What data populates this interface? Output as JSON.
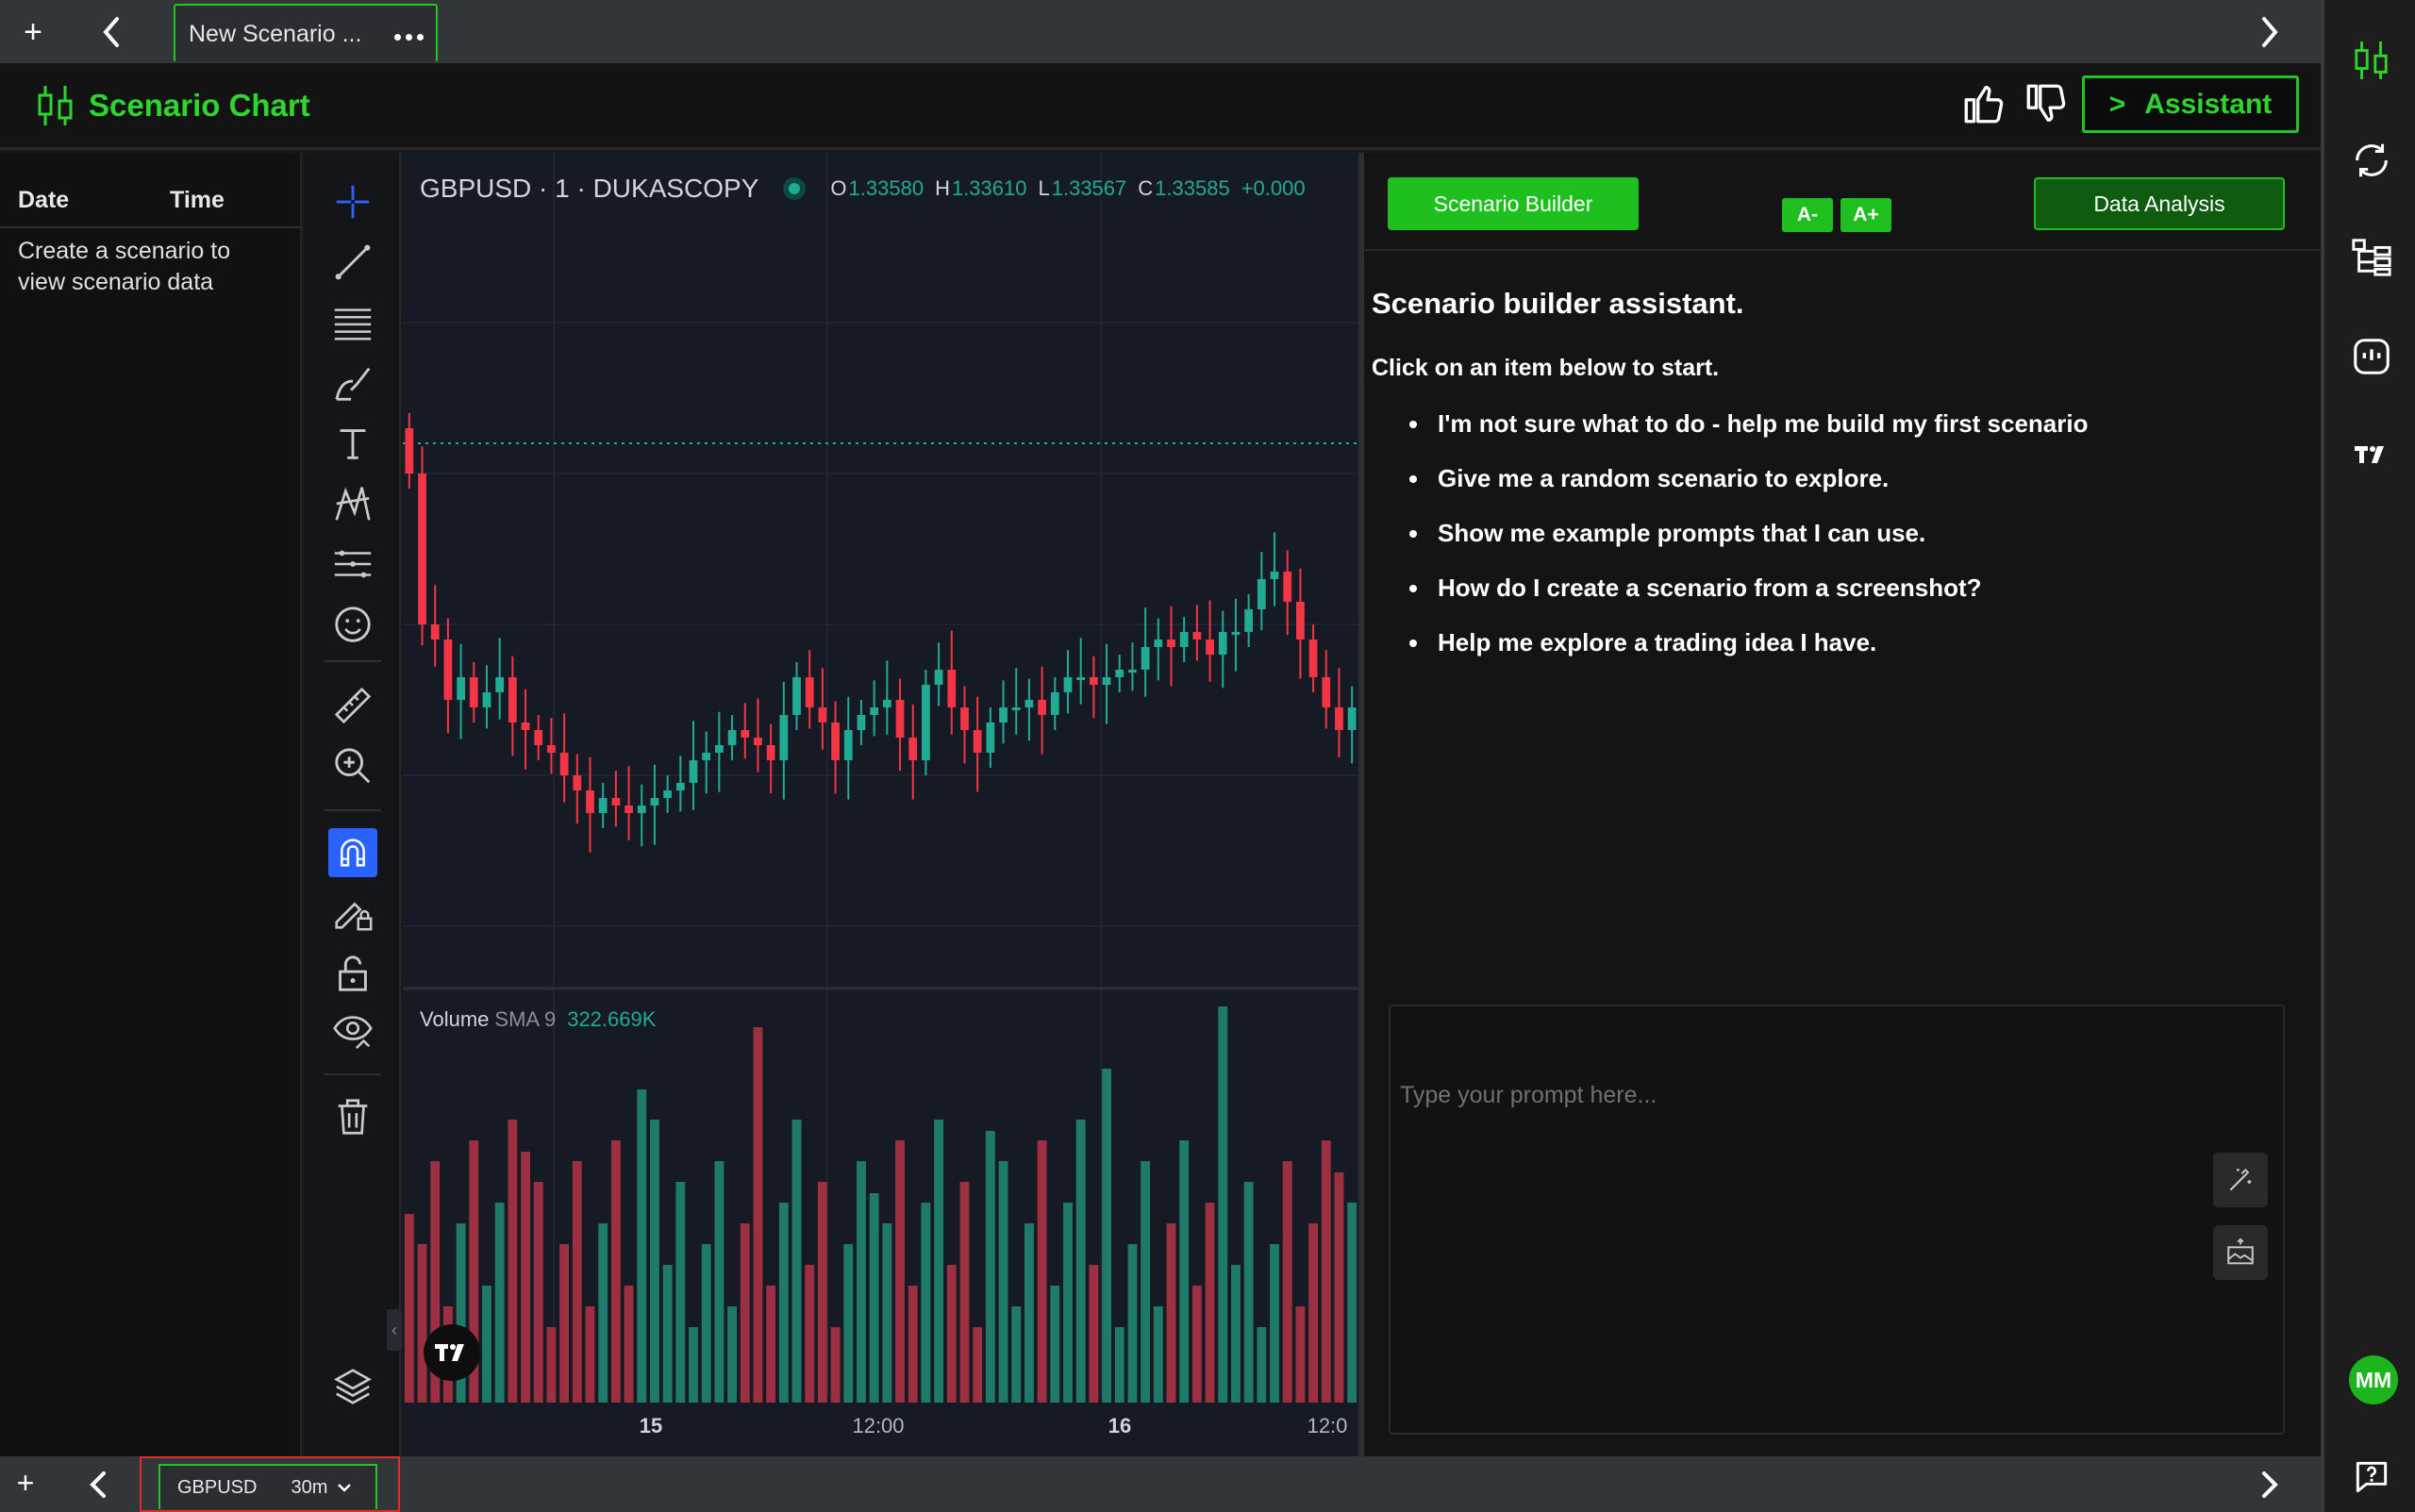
{
  "tabbar": {
    "add_label": "+",
    "tab_title": "New Scenario ..."
  },
  "header": {
    "title": "Scenario Chart",
    "assistant_chevron": ">",
    "assistant_label": "Assistant"
  },
  "data_panel": {
    "columns": [
      "Date",
      "Time"
    ],
    "empty_message": "Create a scenario to view scenario data"
  },
  "chart": {
    "symbol_line": "GBPUSD · 1 · DUKASCOPY",
    "ohlc": [
      {
        "key": "O",
        "value": "1.33580"
      },
      {
        "key": "H",
        "value": "1.33610"
      },
      {
        "key": "L",
        "value": "1.33567"
      },
      {
        "key": "C",
        "value": "1.33585"
      },
      {
        "key": "",
        "value": "+0.000"
      }
    ],
    "volume_legend": {
      "name": "Volume",
      "indicator": "SMA 9",
      "value": "322.669K"
    },
    "x_axis_labels": [
      {
        "text": "15",
        "bold": true
      },
      {
        "text": "12:00",
        "bold": false
      },
      {
        "text": "16",
        "bold": true
      },
      {
        "text": "12:0",
        "bold": false
      }
    ],
    "colors": {
      "up": "#22ab94",
      "down": "#f23645",
      "up_volume": "#1f7a6a",
      "down_volume": "#9c3040",
      "background": "#161a25"
    }
  },
  "chart_data": {
    "type": "candlestick",
    "close": [
      1.3361,
      1.3359,
      1.33588,
      1.3358,
      1.33583,
      1.33579,
      1.33581,
      1.33583,
      1.33577,
      1.33576,
      1.33574,
      1.33573,
      1.3357,
      1.33568,
      1.33565,
      1.33567,
      1.33566,
      1.33565,
      1.33566,
      1.33567,
      1.33568,
      1.33569,
      1.33572,
      1.33573,
      1.33574,
      1.33576,
      1.33575,
      1.33574,
      1.33572,
      1.33578,
      1.33583,
      1.33579,
      1.33577,
      1.33572,
      1.33576,
      1.33578,
      1.33579,
      1.3358,
      1.33575,
      1.33572,
      1.33582,
      1.33584,
      1.33579,
      1.33576,
      1.33573,
      1.33577,
      1.33579,
      1.33579,
      1.3358,
      1.33578,
      1.33581,
      1.33583,
      1.33583,
      1.33582,
      1.33583,
      1.33584,
      1.33584,
      1.33587,
      1.33588,
      1.33587,
      1.33589,
      1.33588,
      1.33586,
      1.33589,
      1.33589,
      1.33592,
      1.33596,
      1.33597,
      1.33593,
      1.33588,
      1.33583,
      1.33579,
      1.33576,
      1.33579
    ]
  },
  "assistant": {
    "builder_button": "Scenario Builder",
    "font_decrease": "A-",
    "font_increase": "A+",
    "analysis_button": "Data Analysis",
    "heading": "Scenario builder assistant.",
    "subheading": "Click on an item below to start.",
    "suggestions": [
      "I'm not sure what to do - help me build my first scenario",
      "Give me a random scenario to explore.",
      "Show me example prompts that I can use.",
      "How do I create a scenario from a screenshot?",
      "Help me explore a trading idea I have."
    ],
    "prompt_placeholder": "Type your prompt here..."
  },
  "rail": {
    "avatar_initials": "MM"
  },
  "bottombar": {
    "add_label": "+",
    "symbol": "GBPUSD",
    "timeframe": "30m"
  },
  "icons": [
    "plus-icon",
    "chevron-left-icon",
    "chevron-right-icon",
    "more-icon",
    "candles-logo-icon",
    "thumbs-up-icon",
    "thumbs-down-icon",
    "crosshair-icon",
    "trend-line-icon",
    "fib-icon",
    "brush-icon",
    "text-icon",
    "pattern-icon",
    "prediction-icon",
    "emoji-icon",
    "ruler-icon",
    "zoom-in-icon",
    "magnet-icon",
    "lock-draw-icon",
    "lock-icon",
    "eye-icon",
    "trash-icon",
    "layers-icon",
    "tradingview-logo-icon",
    "magic-wand-icon",
    "image-upload-icon",
    "refresh-icon",
    "hierarchy-icon",
    "bot-icon",
    "help-icon"
  ]
}
